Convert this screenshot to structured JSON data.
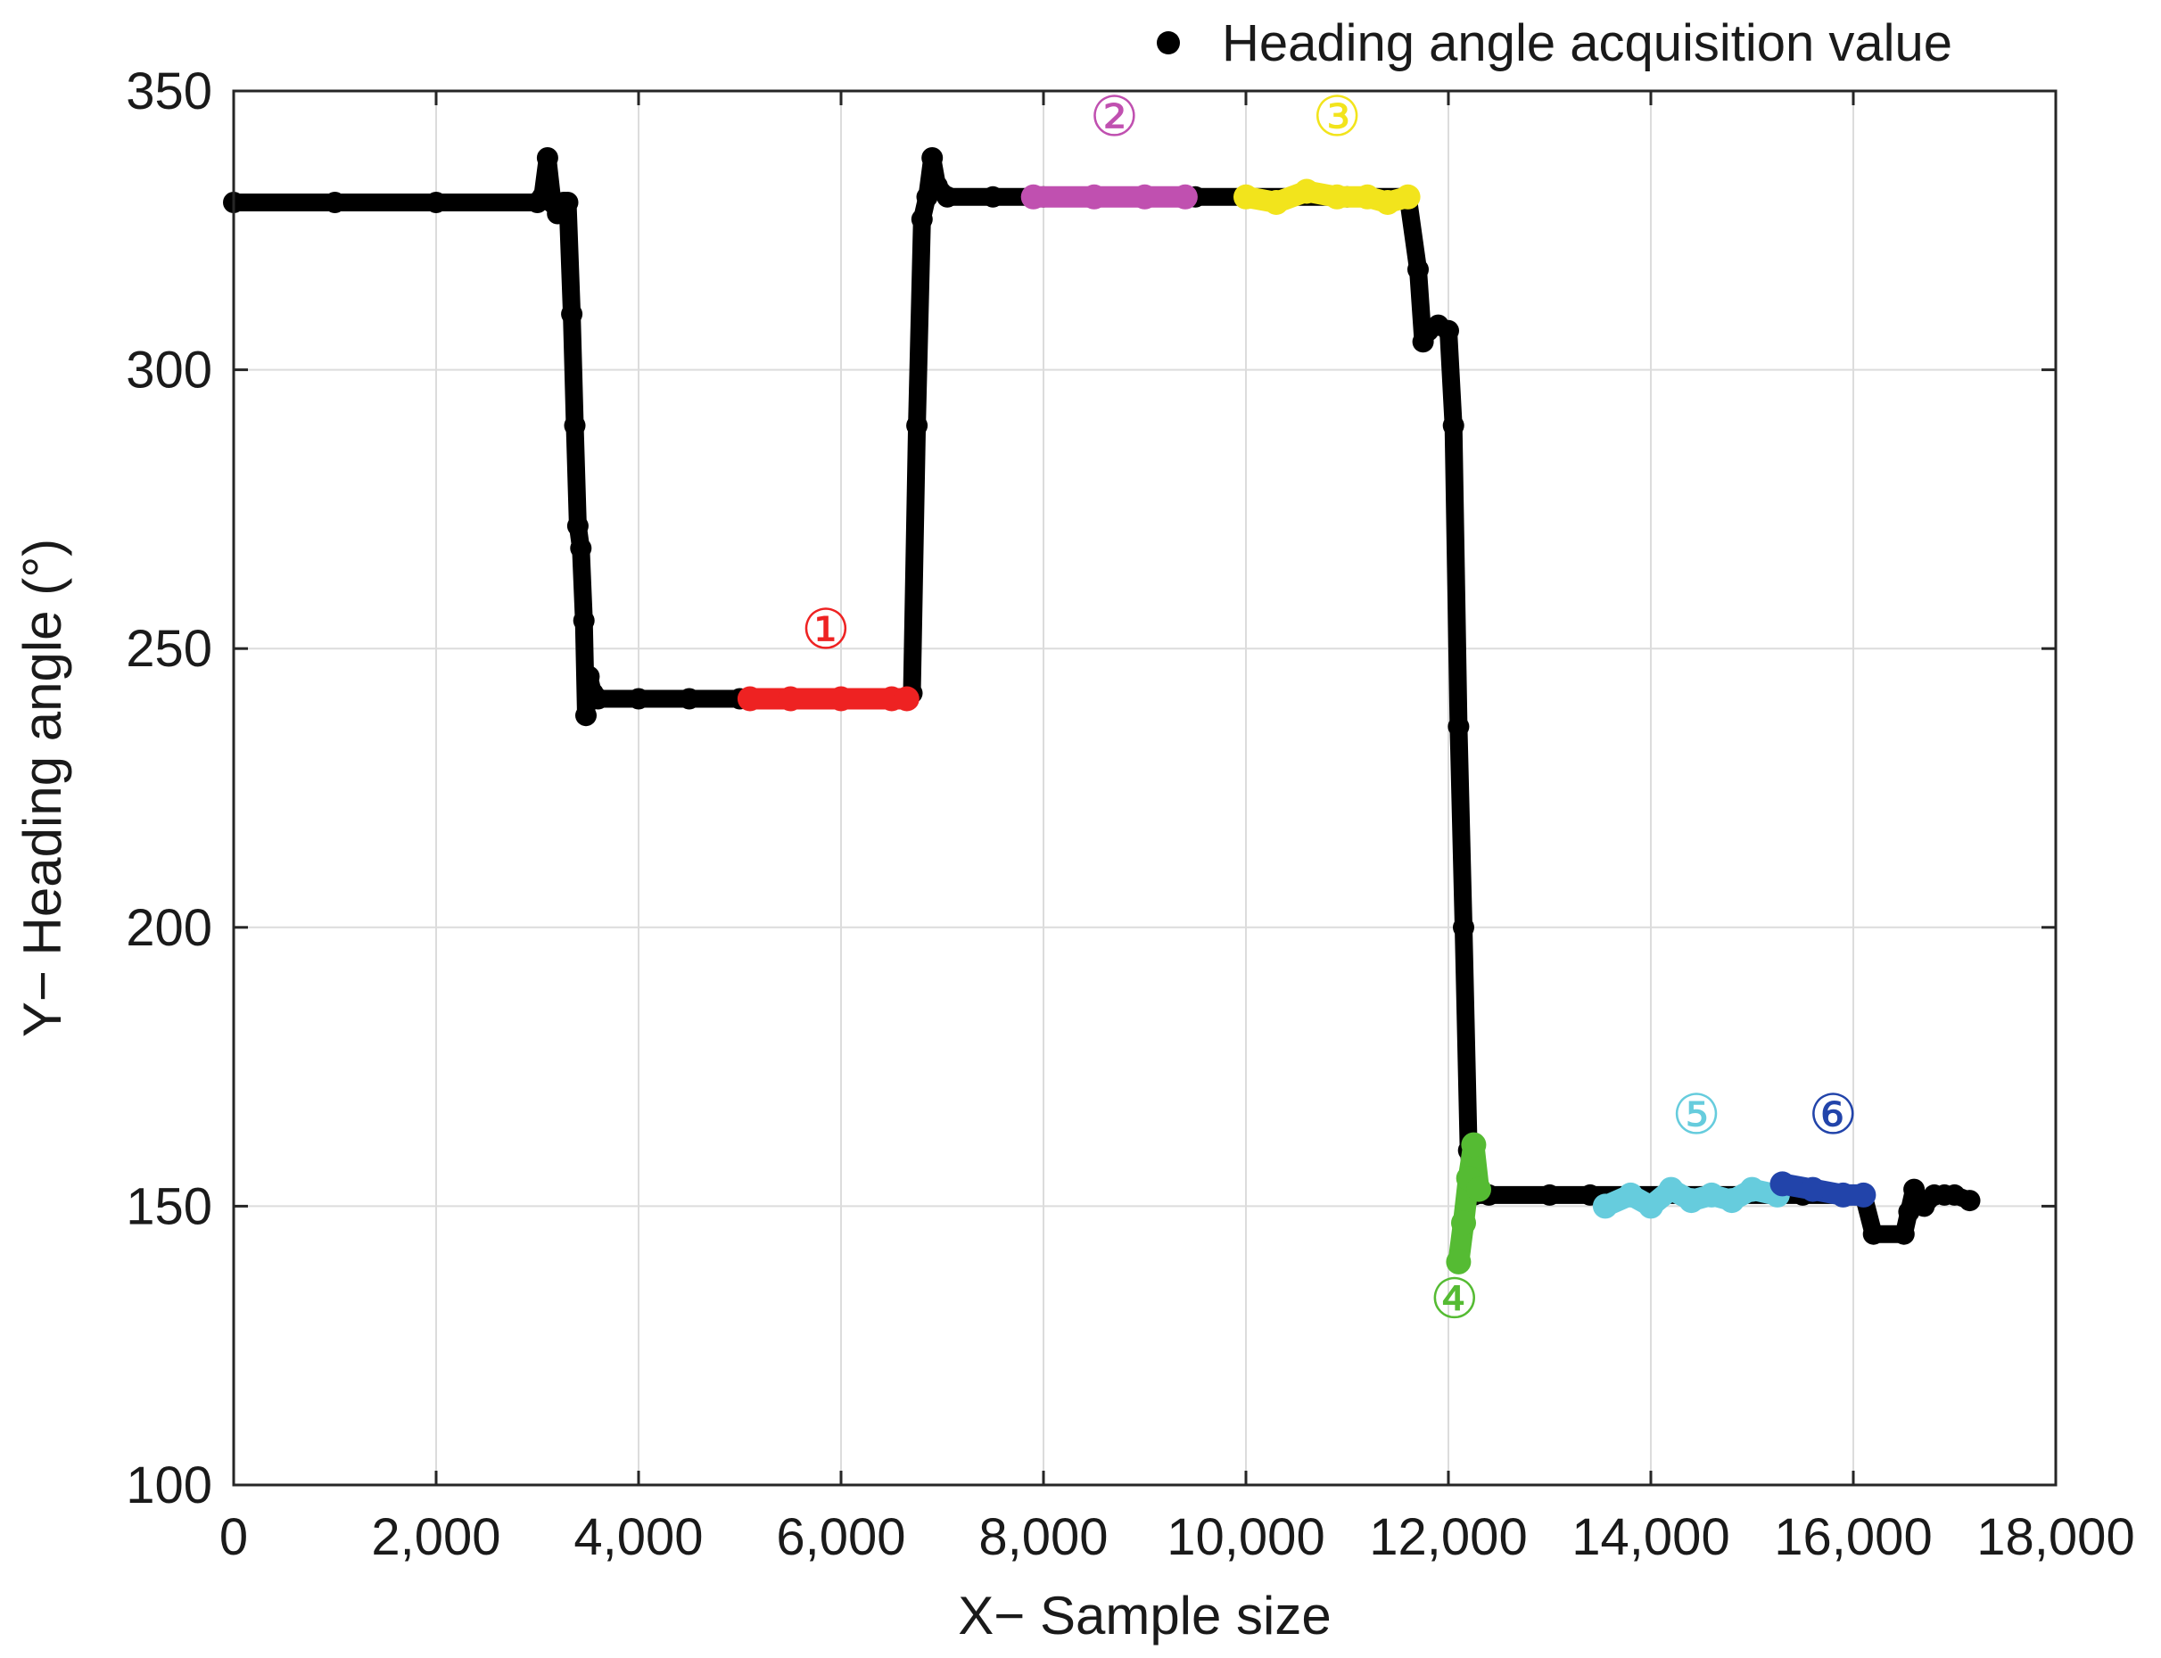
{
  "chart_data": {
    "type": "scatter",
    "xlabel": "X− Sample size",
    "ylabel": "Y− Heading angle (°)",
    "xlim": [
      0,
      18000
    ],
    "ylim": [
      100,
      350
    ],
    "x_ticks": [
      0,
      2000,
      4000,
      6000,
      8000,
      10000,
      12000,
      14000,
      16000,
      18000
    ],
    "x_tick_labels": [
      "0",
      "2,000",
      "4,000",
      "6,000",
      "8,000",
      "10,000",
      "12,000",
      "14,000",
      "16,000",
      "18,000"
    ],
    "y_ticks": [
      100,
      150,
      200,
      250,
      300,
      350
    ],
    "y_tick_labels": [
      "100",
      "150",
      "200",
      "250",
      "300",
      "350"
    ],
    "grid": true,
    "legend": {
      "position": "top-right",
      "entries": [
        {
          "label": "Heading angle acquisition value",
          "color": "#000000"
        }
      ]
    },
    "series": [
      {
        "name": "Heading angle acquisition value",
        "color": "#000000",
        "points": [
          [
            0,
            330
          ],
          [
            1000,
            330
          ],
          [
            2000,
            330
          ],
          [
            3000,
            330
          ],
          [
            3050,
            331
          ],
          [
            3100,
            338
          ],
          [
            3150,
            330
          ],
          [
            3200,
            328
          ],
          [
            3260,
            330
          ],
          [
            3300,
            330
          ],
          [
            3340,
            310
          ],
          [
            3370,
            290
          ],
          [
            3400,
            272
          ],
          [
            3430,
            268
          ],
          [
            3460,
            255
          ],
          [
            3480,
            238
          ],
          [
            3510,
            245
          ],
          [
            3550,
            242
          ],
          [
            3600,
            241
          ],
          [
            4000,
            241
          ],
          [
            4500,
            241
          ],
          [
            5000,
            241
          ],
          [
            5500,
            241
          ],
          [
            6000,
            241
          ],
          [
            6600,
            241
          ],
          [
            6700,
            242
          ],
          [
            6750,
            290
          ],
          [
            6800,
            327
          ],
          [
            6850,
            331
          ],
          [
            6900,
            338
          ],
          [
            6950,
            333
          ],
          [
            7050,
            331
          ],
          [
            7500,
            331
          ],
          [
            8000,
            331
          ],
          [
            9000,
            331
          ],
          [
            9500,
            331
          ],
          [
            10000,
            331
          ],
          [
            11000,
            331
          ],
          [
            11600,
            331
          ],
          [
            11700,
            318
          ],
          [
            11750,
            305
          ],
          [
            11800,
            307
          ],
          [
            11900,
            308
          ],
          [
            12000,
            307
          ],
          [
            12050,
            290
          ],
          [
            12100,
            236
          ],
          [
            12150,
            200
          ],
          [
            12200,
            160
          ],
          [
            12250,
            152
          ],
          [
            12400,
            152
          ],
          [
            13000,
            152
          ],
          [
            13400,
            152
          ],
          [
            15500,
            152
          ],
          [
            16100,
            152
          ],
          [
            16200,
            145
          ],
          [
            16500,
            145
          ],
          [
            16550,
            149
          ],
          [
            16600,
            153
          ],
          [
            16700,
            150
          ],
          [
            16800,
            152
          ],
          [
            16900,
            152
          ],
          [
            17000,
            152
          ],
          [
            17150,
            151
          ]
        ]
      },
      {
        "name": "①",
        "color": "#ee2222",
        "points": [
          [
            5100,
            241
          ],
          [
            5500,
            241
          ],
          [
            6000,
            241
          ],
          [
            6500,
            241
          ],
          [
            6650,
            241
          ]
        ]
      },
      {
        "name": "②",
        "color": "#c050b0",
        "points": [
          [
            7900,
            331
          ],
          [
            8500,
            331
          ],
          [
            9000,
            331
          ],
          [
            9400,
            331
          ]
        ]
      },
      {
        "name": "③",
        "color": "#f2e41c",
        "points": [
          [
            10000,
            331
          ],
          [
            10300,
            330
          ],
          [
            10600,
            332
          ],
          [
            10900,
            331
          ],
          [
            11200,
            331
          ],
          [
            11400,
            330
          ],
          [
            11600,
            331
          ]
        ]
      },
      {
        "name": "④",
        "color": "#55bb33",
        "points": [
          [
            12100,
            140
          ],
          [
            12150,
            147
          ],
          [
            12200,
            155
          ],
          [
            12250,
            161
          ],
          [
            12300,
            153
          ]
        ]
      },
      {
        "name": "⑤",
        "color": "#66ccdd",
        "points": [
          [
            13550,
            150
          ],
          [
            13800,
            152
          ],
          [
            14000,
            150
          ],
          [
            14200,
            153
          ],
          [
            14400,
            151
          ],
          [
            14600,
            152
          ],
          [
            14800,
            151
          ],
          [
            15000,
            153
          ],
          [
            15250,
            152
          ]
        ]
      },
      {
        "name": "⑥",
        "color": "#2244aa",
        "points": [
          [
            15300,
            154
          ],
          [
            15600,
            153
          ],
          [
            15900,
            152
          ],
          [
            16100,
            152
          ]
        ]
      }
    ],
    "annotations": [
      {
        "text": "①",
        "x": 5850,
        "y": 250,
        "color": "#ee2222"
      },
      {
        "text": "②",
        "x": 8700,
        "y": 342,
        "color": "#c050b0"
      },
      {
        "text": "③",
        "x": 10900,
        "y": 342,
        "color": "#f2e41c"
      },
      {
        "text": "④",
        "x": 12060,
        "y": 130,
        "color": "#55bb33"
      },
      {
        "text": "⑤",
        "x": 14450,
        "y": 163,
        "color": "#66ccdd"
      },
      {
        "text": "⑥",
        "x": 15800,
        "y": 163,
        "color": "#2244aa"
      }
    ]
  }
}
